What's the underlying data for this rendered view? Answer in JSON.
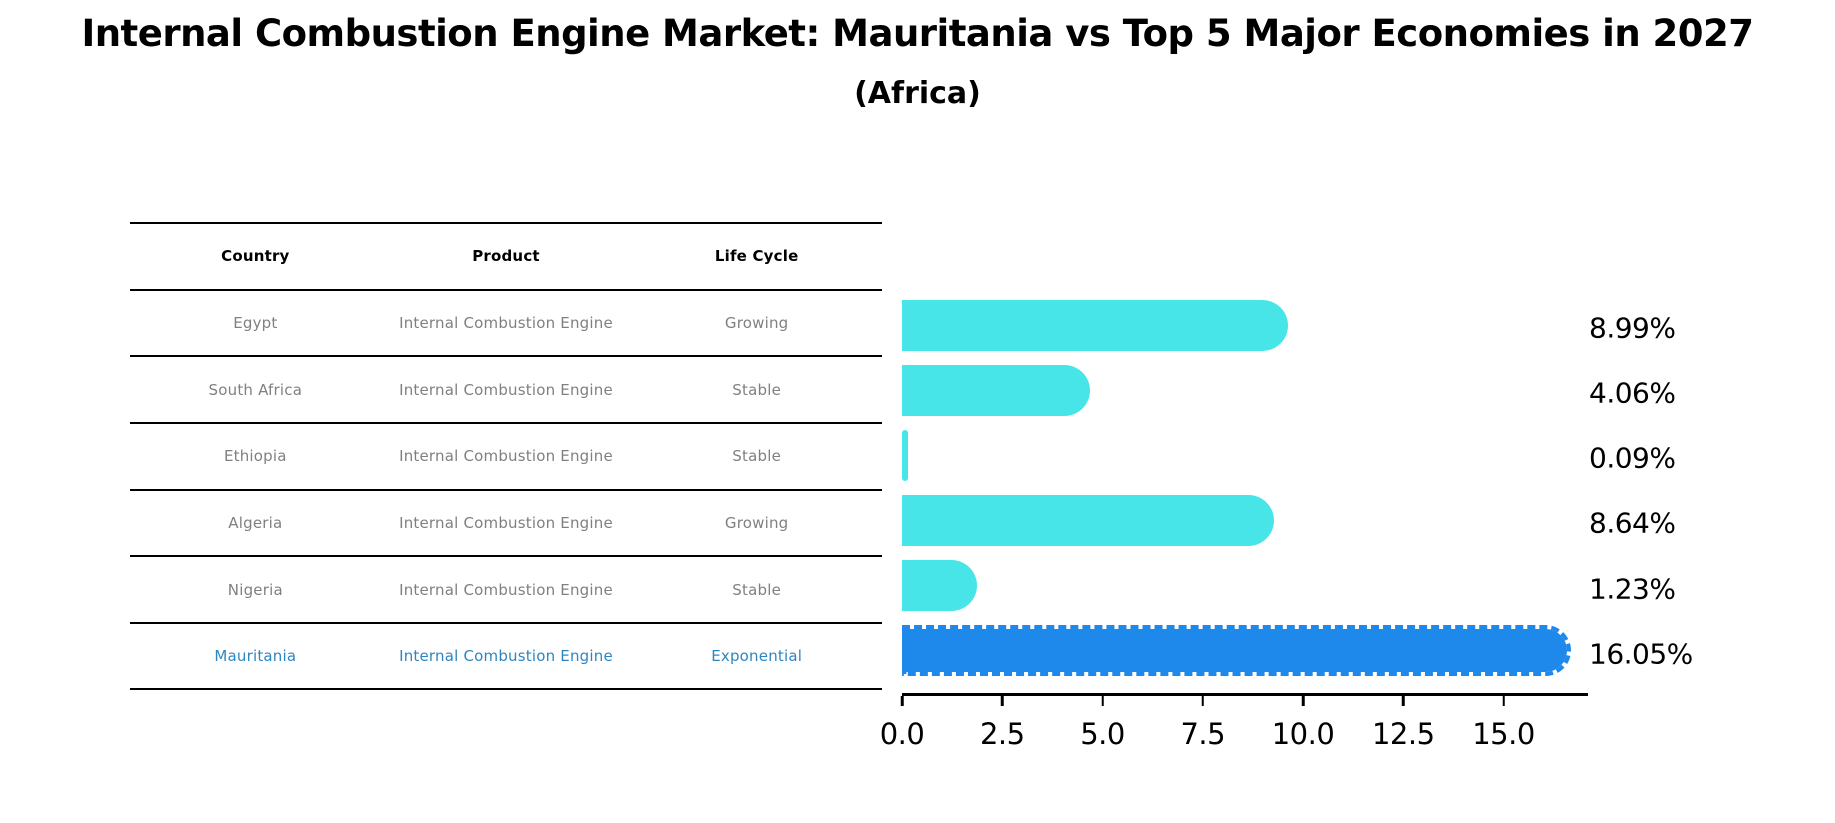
{
  "chart_data": {
    "type": "bar",
    "orientation": "horizontal",
    "title": "Internal Combustion Engine Market: Mauritania vs Top 5 Major Economies in 2027",
    "subtitle": "(Africa)",
    "categories": [
      "Egypt",
      "South Africa",
      "Ethiopia",
      "Algeria",
      "Nigeria",
      "Mauritania"
    ],
    "values": [
      8.99,
      4.06,
      0.09,
      8.64,
      1.23,
      16.05
    ],
    "value_labels": [
      "8.99%",
      "4.06%",
      "0.09%",
      "8.64%",
      "1.23%",
      "16.05%"
    ],
    "highlight_index": 5,
    "xlabel": "",
    "ylabel": "",
    "xlim": [
      0.0,
      17.1
    ],
    "xticks": [
      0.0,
      2.5,
      5.0,
      7.5,
      10.0,
      12.5,
      15.0
    ],
    "xtick_labels": [
      "0.0",
      "2.5",
      "5.0",
      "7.5",
      "10.0",
      "12.5",
      "15.0"
    ],
    "grid": false,
    "legend": false
  },
  "table": {
    "headers": [
      "Country",
      "Product",
      "Life Cycle"
    ],
    "rows": [
      {
        "country": "Egypt",
        "product": "Internal Combustion Engine",
        "life_cycle": "Growing",
        "highlight": false
      },
      {
        "country": "South Africa",
        "product": "Internal Combustion Engine",
        "life_cycle": "Stable",
        "highlight": false
      },
      {
        "country": "Ethiopia",
        "product": "Internal Combustion Engine",
        "life_cycle": "Stable",
        "highlight": false
      },
      {
        "country": "Algeria",
        "product": "Internal Combustion Engine",
        "life_cycle": "Growing",
        "highlight": false
      },
      {
        "country": "Nigeria",
        "product": "Internal Combustion Engine",
        "life_cycle": "Stable",
        "highlight": false
      },
      {
        "country": "Mauritania",
        "product": "Internal Combustion Engine",
        "life_cycle": "Exponential",
        "highlight": true
      }
    ]
  },
  "colors": {
    "bar": "#48E5E8",
    "highlight": "#1E88EB",
    "highlight_text": "#2E86C1",
    "row_text": "#808080",
    "axis": "#000000"
  }
}
